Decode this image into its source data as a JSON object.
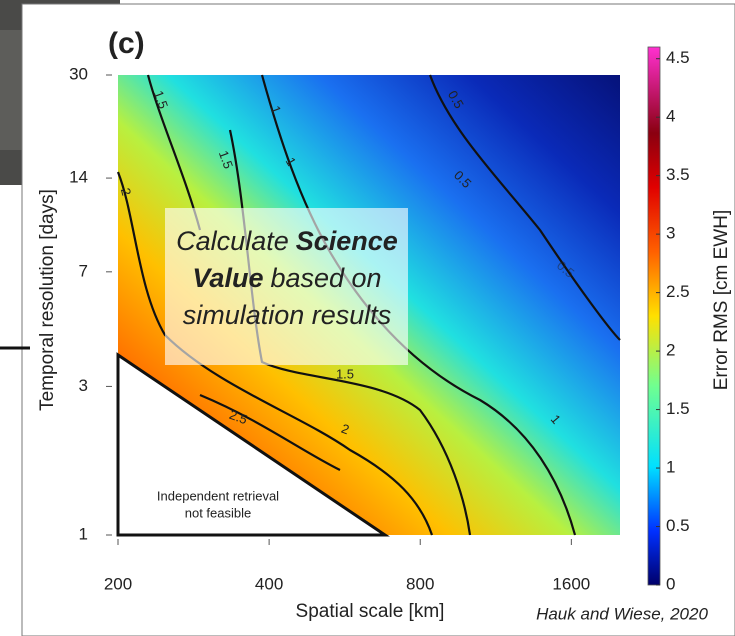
{
  "chart_data": {
    "type": "contour",
    "panel_label": "(c)",
    "x_label": "Spatial scale [km]",
    "y_label": "Temporal resolution [days]",
    "xscale": "log",
    "xlim": [
      200,
      2000
    ],
    "xticks": [
      200,
      400,
      800,
      1600
    ],
    "yscale": "log",
    "ylim": [
      1,
      30
    ],
    "yticks": [
      1,
      3,
      7,
      14,
      30
    ],
    "colorbar": {
      "label": "Error RMS [cm EWH]",
      "lim": [
        0,
        4.6
      ],
      "ticks": [
        0,
        0.5,
        1,
        1.5,
        2,
        2.5,
        3,
        3.5,
        4,
        4.5
      ]
    },
    "contour_labels": [
      1.5,
      1.5,
      2,
      1,
      1,
      0.5,
      0.5,
      0.5,
      1.5,
      2,
      2.5,
      1
    ],
    "region_label": [
      "Independent retrieval",
      "not feasible"
    ]
  },
  "overlay": {
    "lines": [
      [
        {
          "text": "Calculate",
          "bold": false
        },
        {
          "text": "Science",
          "bold": true
        }
      ],
      [
        {
          "text": "Value",
          "bold": true
        },
        {
          "text": "based on",
          "bold": false
        }
      ],
      [
        {
          "text": "simulation results",
          "bold": false
        }
      ]
    ]
  },
  "citation": "Hauk and Wiese, 2020"
}
